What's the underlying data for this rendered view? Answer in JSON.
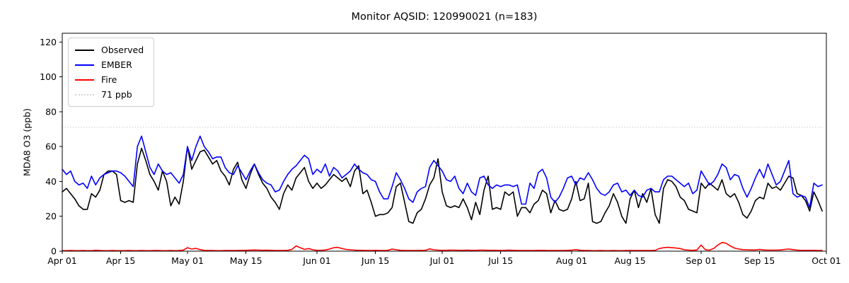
{
  "chart_data": {
    "type": "line",
    "title": "Monitor AQSID: 120990021 (n=183)",
    "xlabel": "",
    "ylabel": "MDA8 O3 (ppb)",
    "n_points": 183,
    "x_total_days": 183,
    "x_start_label": "Apr 01",
    "x_end_label": "Oct 01",
    "ylim": [
      0,
      125
    ],
    "yticks": [
      0,
      20,
      40,
      60,
      80,
      100,
      120
    ],
    "xticks": [
      {
        "day": 0,
        "label": "Apr 01"
      },
      {
        "day": 14,
        "label": "Apr 15"
      },
      {
        "day": 30,
        "label": "May 01"
      },
      {
        "day": 44,
        "label": "May 15"
      },
      {
        "day": 61,
        "label": "Jun 01"
      },
      {
        "day": 75,
        "label": "Jun 15"
      },
      {
        "day": 91,
        "label": "Jul 01"
      },
      {
        "day": 105,
        "label": "Jul 15"
      },
      {
        "day": 122,
        "label": "Aug 01"
      },
      {
        "day": 136,
        "label": "Aug 15"
      },
      {
        "day": 153,
        "label": "Sep 01"
      },
      {
        "day": 167,
        "label": "Sep 15"
      },
      {
        "day": 183,
        "label": "Oct 01"
      }
    ],
    "grid": false,
    "legend_position": "upper-left",
    "threshold": {
      "label": "71 ppb",
      "value": 71,
      "color": "#d3d3d3",
      "style": "dotted"
    },
    "series": [
      {
        "name": "Observed",
        "color": "#000000",
        "values": [
          34,
          36,
          33,
          30,
          26,
          24,
          24,
          33,
          31,
          35,
          44,
          46,
          46,
          44,
          29,
          28,
          29,
          28,
          50,
          59,
          52,
          44,
          40,
          35,
          46,
          40,
          26,
          31,
          27,
          40,
          60,
          47,
          52,
          57,
          58,
          54,
          50,
          52,
          46,
          43,
          38,
          47,
          51,
          41,
          36,
          44,
          50,
          44,
          39,
          36,
          31,
          28,
          24,
          33,
          38,
          35,
          42,
          45,
          48,
          40,
          36,
          39,
          36,
          38,
          41,
          44,
          42,
          40,
          42,
          37,
          46,
          49,
          33,
          35,
          28,
          20,
          21,
          21,
          22,
          25,
          37,
          39,
          28,
          17,
          16,
          22,
          24,
          30,
          38,
          42,
          53,
          34,
          26,
          25,
          26,
          25,
          30,
          25,
          18,
          28,
          21,
          35,
          43,
          24,
          25,
          24,
          34,
          32,
          34,
          20,
          25,
          25,
          22,
          27,
          29,
          35,
          33,
          22,
          29,
          24,
          23,
          24,
          30,
          40,
          29,
          30,
          39,
          17,
          16,
          17,
          22,
          26,
          33,
          28,
          20,
          16,
          30,
          35,
          25,
          33,
          28,
          36,
          21,
          16,
          36,
          41,
          40,
          37,
          31,
          29,
          24,
          23,
          22,
          39,
          36,
          39,
          37,
          35,
          41,
          33,
          31,
          33,
          28,
          21,
          19,
          23,
          29,
          31,
          30,
          39,
          36,
          37,
          35,
          39,
          43,
          42,
          33,
          32,
          29,
          23,
          34,
          29,
          23
        ]
      },
      {
        "name": "EMBER",
        "color": "#0000ff",
        "values": [
          47,
          44,
          46,
          40,
          38,
          39,
          36,
          43,
          38,
          42,
          44,
          45,
          46,
          46,
          45,
          43,
          40,
          37,
          60,
          66,
          57,
          48,
          44,
          50,
          46,
          44,
          45,
          42,
          39,
          44,
          60,
          52,
          60,
          66,
          60,
          57,
          53,
          54,
          54,
          48,
          45,
          44,
          49,
          45,
          41,
          46,
          50,
          45,
          41,
          39,
          38,
          34,
          35,
          40,
          44,
          47,
          49,
          52,
          55,
          53,
          44,
          47,
          45,
          50,
          43,
          48,
          46,
          42,
          44,
          46,
          50,
          47,
          45,
          44,
          41,
          40,
          34,
          30,
          30,
          37,
          45,
          41,
          36,
          30,
          28,
          34,
          36,
          37,
          48,
          52,
          49,
          46,
          41,
          40,
          43,
          36,
          33,
          39,
          34,
          32,
          42,
          43,
          38,
          36,
          38,
          37,
          38,
          38,
          37,
          38,
          27,
          27,
          39,
          36,
          45,
          47,
          42,
          31,
          28,
          31,
          36,
          42,
          43,
          38,
          42,
          41,
          45,
          41,
          36,
          33,
          32,
          34,
          38,
          39,
          34,
          35,
          32,
          35,
          32,
          31,
          35,
          36,
          34,
          34,
          41,
          43,
          43,
          41,
          39,
          37,
          39,
          33,
          35,
          46,
          42,
          38,
          40,
          44,
          50,
          48,
          41,
          44,
          43,
          36,
          31,
          36,
          42,
          47,
          42,
          50,
          44,
          38,
          40,
          46,
          52,
          33,
          31,
          32,
          31,
          25,
          39,
          37,
          38
        ]
      },
      {
        "name": "Fire",
        "color": "#ff0000",
        "values": [
          0.3,
          0.3,
          0.4,
          0.3,
          0.3,
          0.4,
          0.3,
          0.3,
          0.5,
          0.4,
          0.3,
          0.3,
          0.4,
          0.3,
          0.3,
          0.3,
          0.4,
          0.3,
          0.3,
          0.4,
          0.3,
          0.3,
          0.4,
          0.4,
          0.3,
          0.3,
          0.4,
          0.3,
          0.4,
          0.6,
          2.0,
          1.2,
          1.6,
          0.9,
          0.5,
          0.4,
          0.4,
          0.3,
          0.3,
          0.4,
          0.4,
          0.4,
          0.4,
          0.5,
          0.5,
          0.6,
          0.7,
          0.6,
          0.5,
          0.6,
          0.5,
          0.4,
          0.4,
          0.4,
          0.5,
          1.0,
          3.0,
          2.0,
          1.0,
          1.5,
          0.8,
          0.5,
          0.5,
          0.7,
          1.2,
          2.0,
          2.2,
          1.5,
          1.0,
          0.8,
          0.6,
          0.5,
          0.5,
          0.4,
          0.4,
          0.5,
          0.4,
          0.4,
          0.5,
          1.2,
          0.8,
          0.5,
          0.4,
          0.4,
          0.4,
          0.4,
          0.5,
          0.5,
          1.3,
          0.8,
          0.6,
          0.5,
          0.5,
          0.6,
          0.6,
          0.5,
          0.5,
          0.6,
          0.5,
          0.5,
          0.6,
          0.6,
          0.5,
          0.5,
          0.5,
          0.4,
          0.5,
          0.6,
          0.5,
          0.4,
          0.4,
          0.4,
          0.4,
          0.4,
          0.5,
          0.5,
          0.4,
          0.4,
          0.4,
          0.4,
          0.4,
          0.5,
          0.6,
          0.9,
          0.5,
          0.4,
          0.4,
          0.3,
          0.3,
          0.4,
          0.3,
          0.3,
          0.4,
          0.3,
          0.3,
          0.4,
          0.4,
          0.4,
          0.4,
          0.4,
          0.4,
          0.4,
          0.5,
          1.5,
          2.0,
          2.2,
          2.0,
          1.8,
          1.5,
          0.8,
          0.6,
          0.5,
          0.7,
          3.5,
          0.8,
          0.6,
          1.5,
          3.5,
          5.0,
          4.5,
          3.0,
          1.8,
          1.2,
          0.9,
          0.8,
          0.7,
          0.7,
          1.0,
          0.7,
          0.6,
          0.6,
          0.6,
          0.7,
          1.0,
          1.2,
          0.9,
          0.6,
          0.5,
          0.5,
          0.5,
          0.5,
          0.4,
          0.4
        ]
      }
    ],
    "axis_color": "#000000",
    "background_color": "#ffffff"
  }
}
